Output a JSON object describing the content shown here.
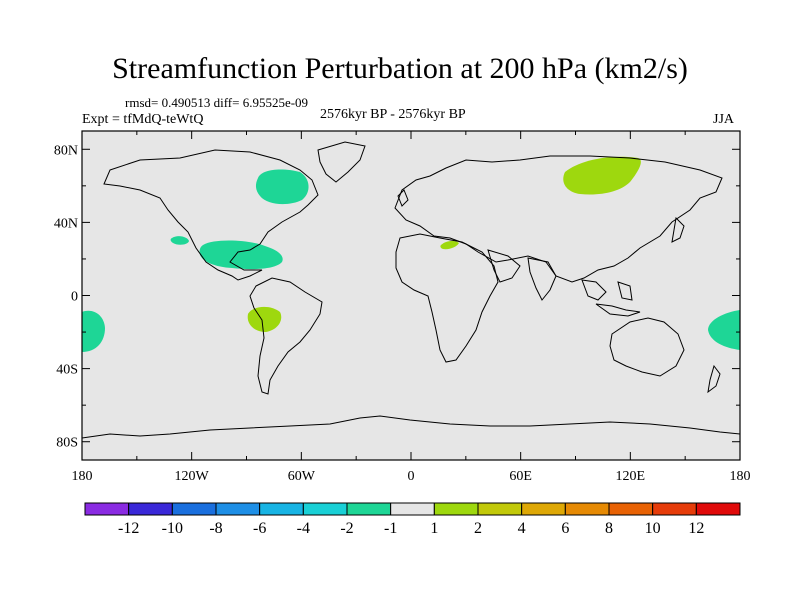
{
  "title": "Streamfunction Perturbation at 200 hPa (km2/s)",
  "stats": "rmsd= 0.490513 diff= 6.95525e-09",
  "experiment": "Expt = tfMdQ-teWtQ",
  "period": "2576kyr BP - 2576kyr BP",
  "season": "JJA",
  "map": {
    "lon_ticks": [
      "180",
      "120W",
      "60W",
      "0",
      "60E",
      "120E",
      "180"
    ],
    "lat_ticks": [
      "80N",
      "40N",
      "0",
      "40S",
      "80S"
    ],
    "background_color": "#e6e6e6",
    "anomalies": [
      {
        "region": "north-america-high-latitude",
        "sign": "negative",
        "color": "#1ed696"
      },
      {
        "region": "gulf-of-mexico-caribbean",
        "sign": "negative",
        "color": "#1ed696"
      },
      {
        "region": "eastern-pacific-small",
        "sign": "negative",
        "color": "#1ed696"
      },
      {
        "region": "southwest-pacific-west-edge",
        "sign": "negative",
        "color": "#1ed696"
      },
      {
        "region": "southwest-pacific-east-edge",
        "sign": "negative",
        "color": "#1ed696"
      },
      {
        "region": "siberia",
        "sign": "positive",
        "color": "#9ed80e"
      },
      {
        "region": "eastern-pacific-peru",
        "sign": "positive",
        "color": "#9ed80e"
      },
      {
        "region": "north-africa",
        "sign": "positive",
        "color": "#9ed80e"
      }
    ]
  },
  "colorbar": {
    "labels": [
      "-12",
      "-10",
      "-8",
      "-6",
      "-4",
      "-2",
      "-1",
      "1",
      "2",
      "4",
      "6",
      "8",
      "10",
      "12"
    ],
    "colors": [
      "#8a2be2",
      "#3a28d8",
      "#1a6fde",
      "#1e8fe6",
      "#18b4e4",
      "#19d0d6",
      "#1ed696",
      "#e6e6e6",
      "#9ed80e",
      "#c2c90a",
      "#dea806",
      "#e68a04",
      "#e86204",
      "#e63c0a",
      "#e00a0a"
    ]
  }
}
